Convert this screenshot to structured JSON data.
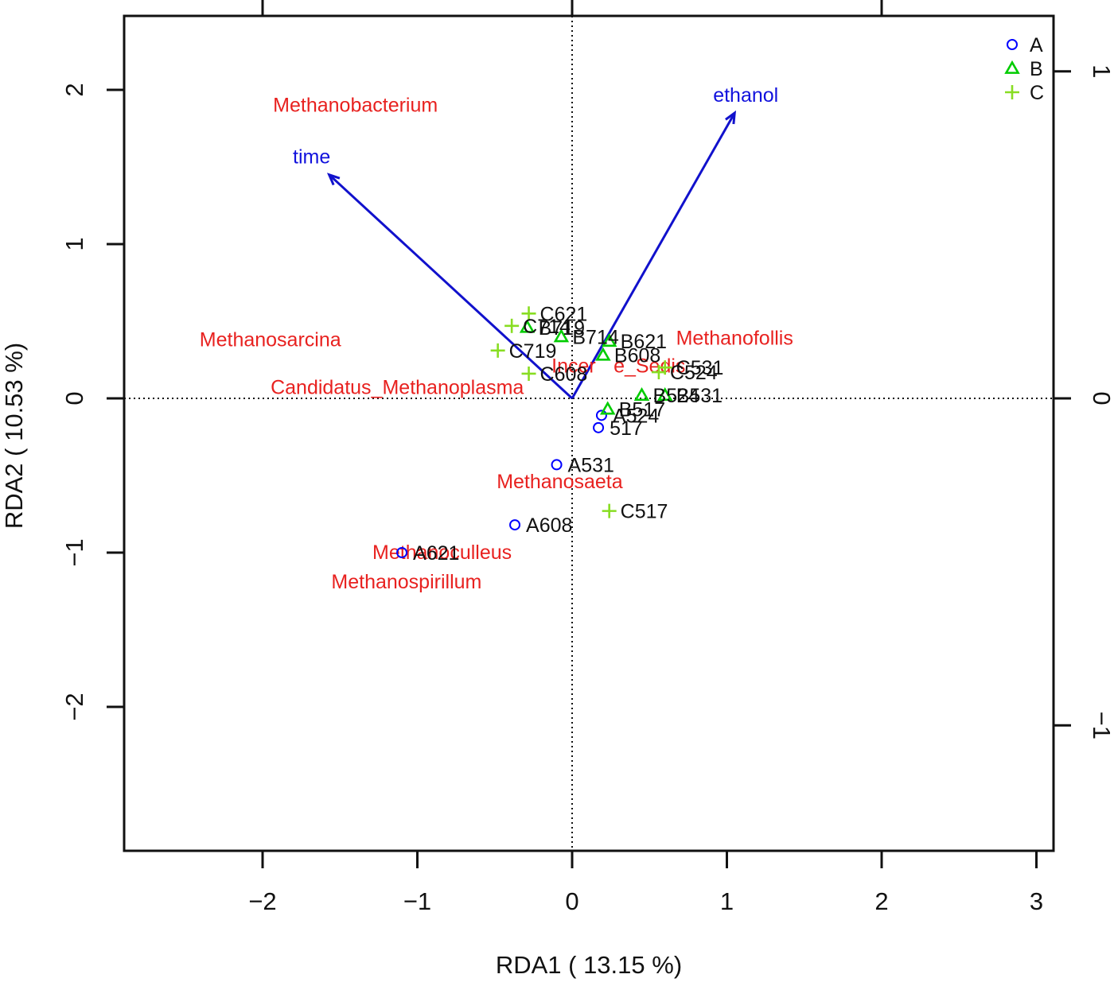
{
  "chart_data": {
    "type": "scatter",
    "title": "",
    "xlabel": "RDA1  ( 13.15 %)",
    "ylabel": "RDA2  ( 10.53 %)",
    "xlim": [
      -2.9,
      3.1
    ],
    "ylim": [
      -2.9,
      2.5
    ],
    "x_ticks": [
      {
        "value": -2,
        "label": "−2"
      },
      {
        "value": -1,
        "label": "−1"
      },
      {
        "value": 0,
        "label": "0"
      },
      {
        "value": 1,
        "label": "1"
      },
      {
        "value": 2,
        "label": "2"
      },
      {
        "value": 3,
        "label": "3"
      }
    ],
    "y_ticks": [
      {
        "value": -2,
        "label": "−2"
      },
      {
        "value": -1,
        "label": "−1"
      },
      {
        "value": 0,
        "label": "0"
      },
      {
        "value": 1,
        "label": "1"
      },
      {
        "value": 2,
        "label": "2"
      }
    ],
    "top_axis_ticks": [
      -2,
      0,
      2
    ],
    "right_axis_ticks": [
      {
        "value": 1,
        "label": "1"
      },
      {
        "value": 0,
        "label": "0"
      },
      {
        "value": -1,
        "label": "−1"
      }
    ],
    "right_axis_scale": 2.12,
    "grid": false,
    "reference_lines": {
      "x": 0,
      "y": 0,
      "style": "dotted"
    },
    "legend": {
      "position": "top-right",
      "entries": [
        {
          "label": "A",
          "symbol": "circle",
          "color": "#0000ff"
        },
        {
          "label": "B",
          "symbol": "triangle",
          "color": "#00cc00"
        },
        {
          "label": "C",
          "symbol": "plus",
          "color": "#88dd22"
        }
      ]
    },
    "arrows": [
      {
        "label": "time",
        "x": -1.57,
        "y": 1.45,
        "color": "#1111cc"
      },
      {
        "label": "ethanol",
        "x": 1.05,
        "y": 1.85,
        "color": "#1111cc"
      }
    ],
    "arrow_label_color": "#1111dd",
    "species_color": "#e8211f",
    "species": [
      {
        "label": "Methanobacterium",
        "x": -1.4,
        "y": 1.9
      },
      {
        "label": "Methanosarcina",
        "x": -1.95,
        "y": 0.38
      },
      {
        "label": "Candidatus_Methanoplasma",
        "x": -1.13,
        "y": 0.07
      },
      {
        "label": "Methanofollis",
        "x": 1.05,
        "y": 0.39
      },
      {
        "label": "Incer",
        "x": 0.01,
        "y": 0.21
      },
      {
        "label": "e_Sedis",
        "x": 0.5,
        "y": 0.21
      },
      {
        "label": "Methanosaeta",
        "x": -0.08,
        "y": -0.54
      },
      {
        "label": "Methanoculleus",
        "x": -0.84,
        "y": -1.0
      },
      {
        "label": "Methanospirillum",
        "x": -1.07,
        "y": -1.19
      }
    ],
    "site_label_color": "#111111",
    "sites": [
      {
        "group": "A",
        "label": "A531",
        "x": -0.1,
        "y": -0.43
      },
      {
        "group": "A",
        "label": "A608",
        "x": -0.37,
        "y": -0.82
      },
      {
        "group": "A",
        "label": "A621",
        "x": -1.1,
        "y": -1.0
      },
      {
        "group": "A",
        "label": "A524",
        "x": 0.19,
        "y": -0.11
      },
      {
        "group": "A",
        "label": "517",
        "x": 0.17,
        "y": -0.19
      },
      {
        "group": "B",
        "label": "B714",
        "x": -0.07,
        "y": 0.4
      },
      {
        "group": "B",
        "label": "B719",
        "x": -0.29,
        "y": 0.46
      },
      {
        "group": "B",
        "label": "B621",
        "x": 0.24,
        "y": 0.37
      },
      {
        "group": "B",
        "label": "B608",
        "x": 0.2,
        "y": 0.28
      },
      {
        "group": "B",
        "label": "B531",
        "x": 0.6,
        "y": 0.02
      },
      {
        "group": "B",
        "label": "B524",
        "x": 0.45,
        "y": 0.02
      },
      {
        "group": "B",
        "label": "B517",
        "x": 0.23,
        "y": -0.07
      },
      {
        "group": "C",
        "label": "C621",
        "x": -0.28,
        "y": 0.55
      },
      {
        "group": "C",
        "label": "C714",
        "x": -0.39,
        "y": 0.47
      },
      {
        "group": "C",
        "label": "C719",
        "x": -0.48,
        "y": 0.31
      },
      {
        "group": "C",
        "label": "C608",
        "x": -0.28,
        "y": 0.16
      },
      {
        "group": "C",
        "label": "C524",
        "x": 0.56,
        "y": 0.17
      },
      {
        "group": "C",
        "label": "C531",
        "x": 0.6,
        "y": 0.2
      },
      {
        "group": "C",
        "label": "C517",
        "x": 0.24,
        "y": -0.73
      }
    ]
  }
}
